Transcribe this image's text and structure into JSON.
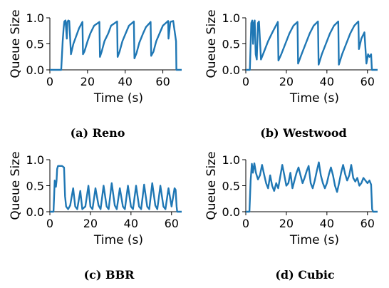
{
  "chart_data": [
    {
      "type": "line",
      "caption_label": "(a)",
      "caption_name": "Reno",
      "xlabel": "Time (s)",
      "ylabel": "Queue Size",
      "xlim": [
        0,
        70
      ],
      "ylim": [
        0,
        1.0
      ],
      "xticks": [
        "0",
        "20",
        "40",
        "60"
      ],
      "yticks": [
        "0.0",
        "0.5",
        "1.0"
      ],
      "series": [
        {
          "color": "#1f77b4",
          "x": [
            0,
            6,
            6.8,
            7.3,
            7.7,
            8.3,
            9.0,
            9.3,
            9.8,
            10.3,
            11.2,
            12.5,
            14.0,
            15.5,
            17.3,
            17.6,
            18.3,
            20.0,
            21.5,
            23.5,
            26.3,
            26.6,
            27.5,
            29.0,
            31.0,
            32.5,
            35.7,
            36.0,
            37.0,
            38.5,
            40.5,
            42.0,
            44.6,
            44.9,
            46.0,
            47.5,
            49.5,
            51.0,
            53.5,
            53.8,
            55.0,
            56.5,
            58.5,
            60.0,
            62.8,
            63.0,
            64.0,
            65.5,
            67.0,
            67.2,
            70
          ],
          "y": [
            0,
            0,
            0.55,
            0.8,
            0.93,
            0.95,
            0.6,
            0.92,
            0.95,
            0.94,
            0.3,
            0.5,
            0.65,
            0.8,
            0.92,
            0.3,
            0.35,
            0.55,
            0.7,
            0.85,
            0.92,
            0.25,
            0.35,
            0.55,
            0.7,
            0.85,
            0.93,
            0.25,
            0.35,
            0.55,
            0.72,
            0.85,
            0.93,
            0.22,
            0.32,
            0.52,
            0.7,
            0.82,
            0.92,
            0.27,
            0.35,
            0.55,
            0.72,
            0.85,
            0.94,
            0.6,
            0.92,
            0.94,
            0.55,
            0.0,
            0
          ]
        }
      ]
    },
    {
      "type": "line",
      "caption_label": "(b)",
      "caption_name": "Westwood",
      "xlabel": "Time (s)",
      "ylabel": "Queue Size",
      "xlim": [
        0,
        65
      ],
      "ylim": [
        0,
        1.0
      ],
      "xticks": [
        "0",
        "20",
        "40",
        "60"
      ],
      "yticks": [
        "0.0",
        "0.5",
        "1.0"
      ],
      "series": [
        {
          "color": "#1f77b4",
          "x": [
            0,
            2.0,
            2.7,
            3.2,
            3.6,
            4.0,
            4.4,
            4.9,
            5.4,
            6.0,
            6.5,
            7.5,
            9.0,
            11.0,
            13.5,
            15.8,
            16.1,
            17.5,
            19.5,
            21.5,
            23.5,
            25.5,
            25.8,
            27.5,
            29.5,
            31.5,
            33.5,
            35.6,
            35.9,
            37.5,
            39.5,
            41.5,
            43.5,
            45.6,
            45.9,
            47.5,
            49.5,
            51.5,
            53.5,
            55.5,
            55.8,
            57.0,
            58.5,
            59.5,
            60.3,
            61.0,
            61.8,
            62.2,
            65
          ],
          "y": [
            0,
            0,
            0.9,
            0.95,
            0.5,
            0.9,
            0.95,
            0.3,
            0.2,
            0.9,
            0.93,
            0.2,
            0.35,
            0.55,
            0.75,
            0.92,
            0.18,
            0.3,
            0.5,
            0.7,
            0.85,
            0.92,
            0.12,
            0.3,
            0.5,
            0.7,
            0.85,
            0.93,
            0.1,
            0.3,
            0.5,
            0.7,
            0.85,
            0.93,
            0.1,
            0.3,
            0.5,
            0.7,
            0.85,
            0.93,
            0.4,
            0.6,
            0.72,
            0.12,
            0.3,
            0.25,
            0.3,
            0.0,
            0
          ]
        }
      ]
    },
    {
      "type": "line",
      "caption_label": "(c)",
      "caption_name": "BBR",
      "xlabel": "Time (s)",
      "ylabel": "Queue Size",
      "xlim": [
        0,
        65
      ],
      "ylim": [
        0,
        1.0
      ],
      "xticks": [
        "0",
        "20",
        "40",
        "60"
      ],
      "yticks": [
        "0.0",
        "0.5",
        "1.0"
      ],
      "series": [
        {
          "color": "#1f77b4",
          "x": [
            0,
            1.8,
            2.4,
            3.0,
            3.3,
            3.6,
            4.0,
            5.0,
            6.0,
            7.0,
            7.5,
            8.0,
            9.0,
            10.0,
            11.5,
            12.5,
            13.5,
            15.0,
            16.0,
            17.5,
            19.0,
            20.0,
            21.0,
            22.5,
            24.0,
            25.0,
            26.5,
            28.0,
            29.0,
            30.5,
            32.0,
            33.0,
            34.5,
            36.0,
            37.0,
            38.5,
            40.0,
            41.0,
            42.5,
            44.0,
            45.0,
            46.5,
            48.0,
            49.0,
            50.5,
            52.0,
            53.0,
            54.5,
            56.0,
            57.0,
            58.5,
            60.0,
            61.5,
            62.0,
            62.5,
            62.8,
            65
          ],
          "y": [
            0,
            0,
            0.6,
            0.48,
            0.6,
            0.82,
            0.88,
            0.88,
            0.88,
            0.85,
            0.3,
            0.1,
            0.05,
            0.12,
            0.45,
            0.1,
            0.05,
            0.4,
            0.05,
            0.1,
            0.5,
            0.1,
            0.05,
            0.45,
            0.12,
            0.05,
            0.5,
            0.1,
            0.05,
            0.55,
            0.12,
            0.05,
            0.45,
            0.1,
            0.05,
            0.5,
            0.1,
            0.05,
            0.5,
            0.1,
            0.05,
            0.52,
            0.1,
            0.05,
            0.55,
            0.12,
            0.05,
            0.5,
            0.1,
            0.05,
            0.45,
            0.1,
            0.45,
            0.42,
            0.1,
            0.0,
            0
          ]
        }
      ]
    },
    {
      "type": "line",
      "caption_label": "(d)",
      "caption_name": "Cubic",
      "xlabel": "Time (s)",
      "ylabel": "Queue Size",
      "xlim": [
        0,
        65
      ],
      "ylim": [
        0,
        1.0
      ],
      "xticks": [
        "0",
        "20",
        "40",
        "60"
      ],
      "yticks": [
        "0.0",
        "0.5",
        "1.0"
      ],
      "series": [
        {
          "color": "#1f77b4",
          "x": [
            0,
            1.8,
            2.4,
            3.0,
            3.5,
            4.2,
            5.0,
            6.0,
            7.0,
            8.0,
            9.0,
            10.0,
            11.0,
            12.0,
            13.0,
            14.0,
            15.0,
            16.0,
            17.0,
            18.0,
            19.0,
            20.0,
            21.0,
            22.0,
            23.0,
            24.0,
            25.0,
            26.0,
            27.0,
            28.0,
            29.0,
            30.0,
            31.0,
            32.0,
            33.0,
            34.0,
            35.0,
            36.0,
            37.0,
            38.0,
            39.0,
            40.0,
            41.0,
            42.0,
            43.0,
            44.0,
            45.0,
            46.0,
            47.0,
            48.0,
            49.0,
            50.0,
            51.0,
            52.0,
            53.0,
            54.0,
            55.0,
            56.0,
            57.0,
            58.0,
            59.0,
            60.0,
            61.0,
            61.8,
            62.3,
            62.8,
            65
          ],
          "y": [
            0,
            0,
            0.6,
            0.92,
            0.75,
            0.93,
            0.75,
            0.62,
            0.7,
            0.9,
            0.72,
            0.55,
            0.45,
            0.7,
            0.5,
            0.4,
            0.55,
            0.45,
            0.68,
            0.9,
            0.7,
            0.5,
            0.55,
            0.75,
            0.45,
            0.6,
            0.75,
            0.85,
            0.7,
            0.55,
            0.65,
            0.78,
            0.88,
            0.55,
            0.45,
            0.6,
            0.78,
            0.95,
            0.7,
            0.55,
            0.45,
            0.55,
            0.72,
            0.85,
            0.7,
            0.5,
            0.38,
            0.55,
            0.75,
            0.9,
            0.72,
            0.6,
            0.7,
            0.9,
            0.65,
            0.58,
            0.65,
            0.5,
            0.55,
            0.65,
            0.6,
            0.55,
            0.6,
            0.52,
            0.05,
            0.0,
            0
          ]
        }
      ]
    }
  ]
}
